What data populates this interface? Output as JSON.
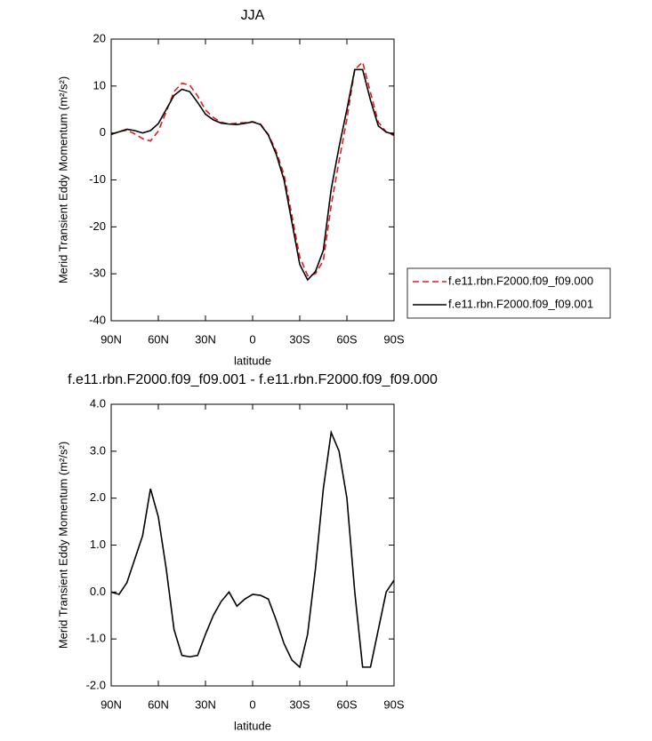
{
  "chart_data": [
    {
      "type": "line",
      "title": "JJA",
      "x_label": "latitude",
      "y_label": "Merid Transient Eddy Momentum (m²/s²)",
      "x": [
        90,
        85,
        80,
        75,
        70,
        65,
        60,
        55,
        50,
        45,
        40,
        35,
        30,
        25,
        20,
        15,
        10,
        5,
        0,
        -5,
        -10,
        -15,
        -20,
        -25,
        -30,
        -35,
        -40,
        -45,
        -50,
        -55,
        -60,
        -65,
        -70,
        -75,
        -80,
        -85,
        -90
      ],
      "series": [
        {
          "name": "f.e11.rbn.F2000.f09_f09.000",
          "color": "#e41a1c",
          "line_style": "dashed",
          "values": [
            -0.3,
            0.3,
            0.6,
            -0.2,
            -1.2,
            -1.7,
            0.4,
            4.5,
            8.8,
            10.6,
            10.2,
            7.9,
            4.9,
            3.3,
            2.3,
            1.9,
            2.1,
            2.2,
            2.4,
            1.9,
            -0.3,
            -3.9,
            -8.9,
            -17.6,
            -26.4,
            -30.4,
            -30.0,
            -27.2,
            -15.4,
            -6.0,
            3.0,
            13.5,
            15.1,
            8.6,
            2.3,
            0.2,
            -0.55
          ]
        },
        {
          "name": "f.e11.rbn.F2000.f09_f09.001",
          "color": "#000000",
          "line_style": "solid",
          "values": [
            -0.3,
            0.25,
            0.8,
            0.5,
            0.0,
            0.5,
            2.0,
            5.0,
            8.0,
            9.3,
            8.8,
            6.5,
            4.0,
            2.8,
            2.1,
            1.9,
            1.8,
            2.05,
            2.35,
            1.8,
            -0.45,
            -4.5,
            -10.0,
            -19.0,
            -28.0,
            -31.3,
            -29.5,
            -25.0,
            -12.0,
            -3.0,
            5.0,
            13.5,
            13.5,
            7.0,
            1.5,
            0.2,
            -0.3
          ]
        }
      ],
      "xlim": [
        90,
        -90
      ],
      "xticks": [
        {
          "value": 90,
          "label": "90N"
        },
        {
          "value": 60,
          "label": "60N"
        },
        {
          "value": 30,
          "label": "30N"
        },
        0,
        {
          "value": -30,
          "label": "30S"
        },
        {
          "value": -60,
          "label": "60S"
        },
        {
          "value": -90,
          "label": "90S"
        }
      ],
      "ylim": [
        -40,
        20
      ],
      "yticks": [
        20,
        10,
        0,
        -10,
        -20,
        -30,
        -40
      ],
      "legend": "outside-right"
    },
    {
      "type": "line",
      "title": "f.e11.rbn.F2000.f09_f09.001 - f.e11.rbn.F2000.f09_f09.000",
      "x_label": "latitude",
      "y_label": "Merid Transient Eddy Momentum (m²/s²)",
      "x": [
        90,
        85,
        80,
        75,
        70,
        65,
        60,
        55,
        50,
        45,
        40,
        35,
        30,
        25,
        20,
        15,
        10,
        5,
        0,
        -5,
        -10,
        -15,
        -20,
        -25,
        -30,
        -35,
        -40,
        -45,
        -50,
        -55,
        -60,
        -65,
        -70,
        -75,
        -80,
        -85,
        -90
      ],
      "values": [
        0.0,
        -0.05,
        0.2,
        0.7,
        1.2,
        2.2,
        1.6,
        0.5,
        -0.8,
        -1.35,
        -1.38,
        -1.35,
        -0.9,
        -0.5,
        -0.2,
        0.0,
        -0.3,
        -0.15,
        -0.05,
        -0.07,
        -0.15,
        -0.6,
        -1.1,
        -1.45,
        -1.6,
        -0.9,
        0.5,
        2.2,
        3.4,
        3.0,
        2.0,
        0.0,
        -1.6,
        -1.6,
        -0.8,
        0.0,
        0.25
      ],
      "color": "#000000",
      "xlim": [
        90,
        -90
      ],
      "xticks": [
        {
          "value": 90,
          "label": "90N"
        },
        {
          "value": 60,
          "label": "60N"
        },
        {
          "value": 30,
          "label": "30N"
        },
        0,
        {
          "value": -30,
          "label": "30S"
        },
        {
          "value": -60,
          "label": "60S"
        },
        {
          "value": -90,
          "label": "90S"
        }
      ],
      "ylim": [
        -2,
        4
      ],
      "yticks": [
        {
          "value": 4,
          "label": "4.0"
        },
        {
          "value": 3,
          "label": "3.0"
        },
        {
          "value": 2,
          "label": "2.0"
        },
        {
          "value": 1,
          "label": "1.0"
        },
        {
          "value": 0,
          "label": "0.0"
        },
        {
          "value": -1,
          "label": "-1.0"
        },
        {
          "value": -2,
          "label": "-2.0"
        }
      ]
    }
  ]
}
